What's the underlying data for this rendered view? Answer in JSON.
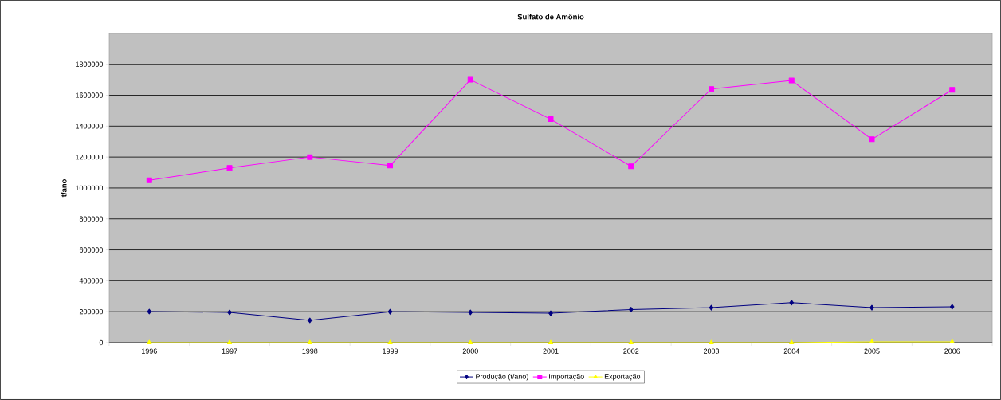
{
  "chart_data": {
    "type": "line",
    "title": "Sulfato de Amônio",
    "ylabel": "t/ano",
    "categories": [
      "1996",
      "1997",
      "1998",
      "1999",
      "2000",
      "2001",
      "2002",
      "2003",
      "2004",
      "2005",
      "2006"
    ],
    "series": [
      {
        "name": "Produção (t/ano)",
        "color": "#000080",
        "marker": "diamond",
        "values": [
          201000,
          196000,
          144000,
          200000,
          196000,
          190000,
          214000,
          226000,
          259000,
          226000,
          232000
        ]
      },
      {
        "name": "Importação",
        "color": "#ff00ff",
        "marker": "square",
        "values": [
          1050000,
          1130000,
          1200000,
          1145000,
          1700000,
          1445000,
          1140000,
          1640000,
          1695000,
          1315000,
          1635000
        ]
      },
      {
        "name": "Exportação",
        "color": "#ffff00",
        "marker": "triangle",
        "values": [
          0,
          0,
          0,
          0,
          0,
          0,
          0,
          0,
          0,
          5000,
          5000
        ]
      }
    ],
    "ylim": [
      0,
      2000000
    ],
    "yticks": [
      0,
      200000,
      400000,
      600000,
      800000,
      1000000,
      1200000,
      1400000,
      1600000,
      1800000
    ],
    "grid": "y",
    "legend": "bottom",
    "line_style": "solid"
  }
}
